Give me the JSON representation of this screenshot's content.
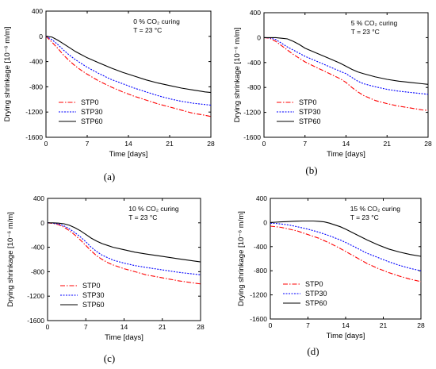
{
  "chart_data": [
    {
      "type": "line",
      "panel_label": "(a)",
      "condition_line1": "0 % CO₂ curing",
      "condition_line2": "T = 23 °C",
      "xlabel": "Time [days]",
      "ylabel": "Drying shrinkage [10⁻⁶ m/m]",
      "xlim": [
        0,
        28
      ],
      "ylim": [
        -1600,
        400
      ],
      "xticks": [
        0,
        7,
        14,
        21,
        28
      ],
      "yticks": [
        400,
        0,
        -400,
        -800,
        -1200,
        -1600
      ],
      "legend_position": "bottom-left",
      "series": [
        {
          "name": "STP0",
          "color": "#ff0000",
          "style": "dashdot",
          "x": [
            0,
            1,
            2,
            3,
            4,
            5,
            6,
            7,
            9,
            11,
            13,
            15,
            17,
            19,
            21,
            23,
            25,
            27,
            28
          ],
          "y": [
            0,
            -90,
            -190,
            -300,
            -390,
            -470,
            -540,
            -600,
            -710,
            -800,
            -880,
            -950,
            -1010,
            -1070,
            -1120,
            -1170,
            -1220,
            -1250,
            -1270
          ]
        },
        {
          "name": "STP30",
          "color": "#0000ff",
          "style": "dot",
          "x": [
            0,
            1,
            2,
            3,
            4,
            5,
            6,
            7,
            9,
            11,
            13,
            15,
            17,
            19,
            21,
            23,
            25,
            27,
            28
          ],
          "y": [
            0,
            -50,
            -130,
            -220,
            -300,
            -370,
            -430,
            -490,
            -590,
            -680,
            -750,
            -820,
            -880,
            -940,
            -990,
            -1030,
            -1060,
            -1080,
            -1090
          ]
        },
        {
          "name": "STP60",
          "color": "#000000",
          "style": "solid",
          "x": [
            0,
            1,
            2,
            3,
            4,
            5,
            6,
            7,
            9,
            11,
            13,
            15,
            17,
            19,
            21,
            23,
            25,
            27,
            28
          ],
          "y": [
            0,
            -10,
            -60,
            -120,
            -180,
            -240,
            -290,
            -340,
            -420,
            -500,
            -570,
            -630,
            -690,
            -740,
            -780,
            -820,
            -850,
            -880,
            -890
          ]
        }
      ]
    },
    {
      "type": "line",
      "panel_label": "(b)",
      "condition_line1": "5 % CO₂ curing",
      "condition_line2": "T = 23 °C",
      "xlabel": "Time [days]",
      "ylabel": "Drying shrinkage [10⁻⁶ m/m]",
      "xlim": [
        0,
        28
      ],
      "ylim": [
        -1600,
        400
      ],
      "xticks": [
        0,
        7,
        14,
        21,
        28
      ],
      "yticks": [
        400,
        0,
        -400,
        -800,
        -1200,
        -1600
      ],
      "legend_position": "bottom-left",
      "series": [
        {
          "name": "STP0",
          "color": "#ff0000",
          "style": "dashdot",
          "x": [
            0,
            1,
            2,
            3,
            4,
            5,
            6,
            7,
            9,
            11,
            13,
            14,
            15,
            16,
            17,
            19,
            21,
            23,
            25,
            27,
            28
          ],
          "y": [
            0,
            -10,
            -60,
            -130,
            -200,
            -270,
            -330,
            -390,
            -480,
            -570,
            -660,
            -720,
            -800,
            -870,
            -930,
            -1010,
            -1060,
            -1100,
            -1130,
            -1160,
            -1170
          ]
        },
        {
          "name": "STP30",
          "color": "#0000ff",
          "style": "dot",
          "x": [
            0,
            1,
            2,
            3,
            4,
            5,
            6,
            7,
            9,
            11,
            13,
            14,
            15,
            16,
            17,
            19,
            21,
            23,
            25,
            27,
            28
          ],
          "y": [
            0,
            -5,
            -30,
            -90,
            -150,
            -200,
            -250,
            -300,
            -380,
            -460,
            -540,
            -580,
            -640,
            -700,
            -740,
            -790,
            -830,
            -860,
            -880,
            -900,
            -910
          ]
        },
        {
          "name": "STP60",
          "color": "#000000",
          "style": "solid",
          "x": [
            0,
            1,
            2,
            3,
            4,
            5,
            6,
            7,
            9,
            11,
            13,
            14,
            15,
            16,
            17,
            19,
            21,
            23,
            25,
            27,
            28
          ],
          "y": [
            0,
            0,
            0,
            -10,
            -20,
            -60,
            -110,
            -170,
            -250,
            -330,
            -410,
            -460,
            -510,
            -550,
            -580,
            -630,
            -670,
            -700,
            -720,
            -740,
            -750
          ]
        }
      ]
    },
    {
      "type": "line",
      "panel_label": "(c)",
      "condition_line1": "10 % CO₂ curing",
      "condition_line2": "T = 23 °C",
      "xlabel": "Time [days]",
      "ylabel": "Drying shrinkage [10⁻⁶ m/m]",
      "xlim": [
        0,
        28
      ],
      "ylim": [
        -1600,
        400
      ],
      "xticks": [
        0,
        7,
        14,
        21,
        28
      ],
      "yticks": [
        400,
        0,
        -400,
        -800,
        -1200,
        -1600
      ],
      "legend_position": "bottom-left",
      "series": [
        {
          "name": "STP0",
          "color": "#ff0000",
          "style": "dashdot",
          "x": [
            0,
            1,
            2,
            3,
            4,
            5,
            6,
            7,
            8,
            9,
            10,
            11,
            12,
            14,
            16,
            18,
            21,
            24,
            28
          ],
          "y": [
            0,
            -10,
            -30,
            -70,
            -130,
            -200,
            -280,
            -370,
            -460,
            -540,
            -600,
            -650,
            -690,
            -750,
            -800,
            -850,
            -900,
            -950,
            -1000
          ]
        },
        {
          "name": "STP30",
          "color": "#0000ff",
          "style": "dot",
          "x": [
            0,
            1,
            2,
            3,
            4,
            5,
            6,
            7,
            8,
            9,
            10,
            11,
            12,
            14,
            16,
            18,
            21,
            24,
            28
          ],
          "y": [
            0,
            -5,
            -20,
            -50,
            -100,
            -160,
            -230,
            -310,
            -400,
            -470,
            -530,
            -570,
            -610,
            -660,
            -700,
            -730,
            -770,
            -810,
            -850
          ]
        },
        {
          "name": "STP60",
          "color": "#000000",
          "style": "solid",
          "x": [
            0,
            1,
            2,
            3,
            4,
            5,
            6,
            7,
            8,
            9,
            10,
            11,
            12,
            14,
            16,
            18,
            21,
            24,
            28
          ],
          "y": [
            0,
            0,
            -5,
            -15,
            -40,
            -80,
            -130,
            -190,
            -250,
            -300,
            -340,
            -370,
            -400,
            -440,
            -480,
            -510,
            -550,
            -590,
            -640
          ]
        }
      ]
    },
    {
      "type": "line",
      "panel_label": "(d)",
      "condition_line1": "15 % CO₂ curing",
      "condition_line2": "T = 23 °C",
      "xlabel": "Time [days]",
      "ylabel": "Drying shrinkage [10⁻⁶ m/m]",
      "xlim": [
        0,
        28
      ],
      "ylim": [
        -1600,
        400
      ],
      "xticks": [
        0,
        7,
        14,
        21,
        28
      ],
      "yticks": [
        400,
        0,
        -400,
        -800,
        -1200,
        -1600
      ],
      "legend_position": "bottom-left",
      "series": [
        {
          "name": "STP0",
          "color": "#ff0000",
          "style": "dashdot",
          "x": [
            0,
            1,
            2,
            3,
            4,
            5,
            6,
            7,
            9,
            11,
            13,
            14,
            16,
            18,
            20,
            22,
            24,
            26,
            28
          ],
          "y": [
            -60,
            -70,
            -80,
            -100,
            -120,
            -140,
            -170,
            -200,
            -260,
            -340,
            -430,
            -480,
            -580,
            -680,
            -760,
            -830,
            -890,
            -940,
            -980
          ]
        },
        {
          "name": "STP30",
          "color": "#0000ff",
          "style": "dot",
          "x": [
            0,
            1,
            2,
            3,
            4,
            5,
            6,
            7,
            9,
            11,
            13,
            14,
            16,
            18,
            20,
            22,
            24,
            26,
            28
          ],
          "y": [
            -10,
            -15,
            -25,
            -35,
            -50,
            -70,
            -90,
            -110,
            -160,
            -220,
            -290,
            -330,
            -420,
            -510,
            -580,
            -650,
            -710,
            -760,
            -800
          ]
        },
        {
          "name": "STP60",
          "color": "#000000",
          "style": "solid",
          "x": [
            0,
            1,
            2,
            3,
            4,
            5,
            6,
            7,
            8,
            9,
            10,
            11,
            13,
            14,
            16,
            18,
            20,
            22,
            24,
            26,
            28
          ],
          "y": [
            0,
            5,
            10,
            15,
            20,
            22,
            25,
            25,
            25,
            20,
            10,
            -10,
            -70,
            -110,
            -200,
            -290,
            -370,
            -440,
            -490,
            -530,
            -560
          ]
        }
      ]
    }
  ]
}
